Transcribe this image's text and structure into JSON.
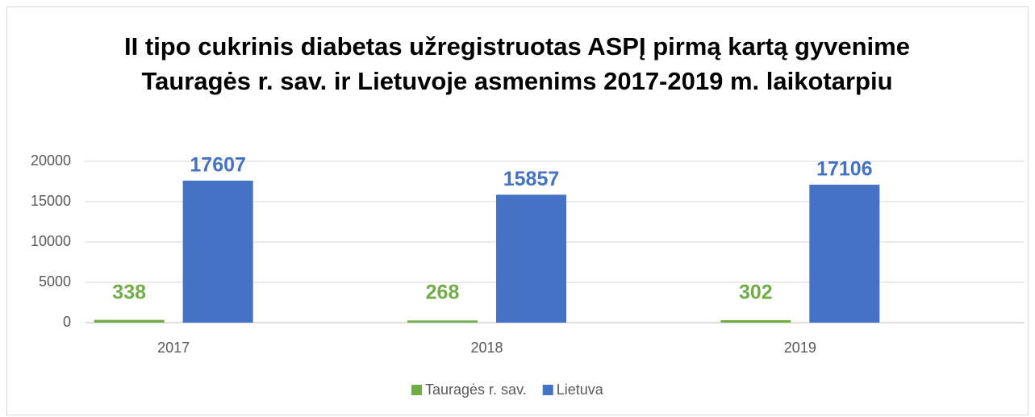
{
  "chart_data": {
    "type": "bar",
    "title": "II tipo cukrinis diabetas užregistruotas ASPĮ pirmą kartą gyvenime Tauragės r. sav. ir Lietuvoje asmenims 2017-2019 m. laikotarpiu",
    "categories": [
      "2017",
      "2018",
      "2019"
    ],
    "series": [
      {
        "name": "Tauragės r. sav.",
        "color": "#70ad47",
        "values": [
          338,
          268,
          302
        ]
      },
      {
        "name": "Lietuva",
        "color": "#4472c4",
        "values": [
          17607,
          15857,
          17106
        ]
      }
    ],
    "ylim": [
      0,
      20000
    ],
    "yticks": [
      0,
      5000,
      10000,
      15000,
      20000
    ],
    "grid": true,
    "legend": "bottom"
  }
}
